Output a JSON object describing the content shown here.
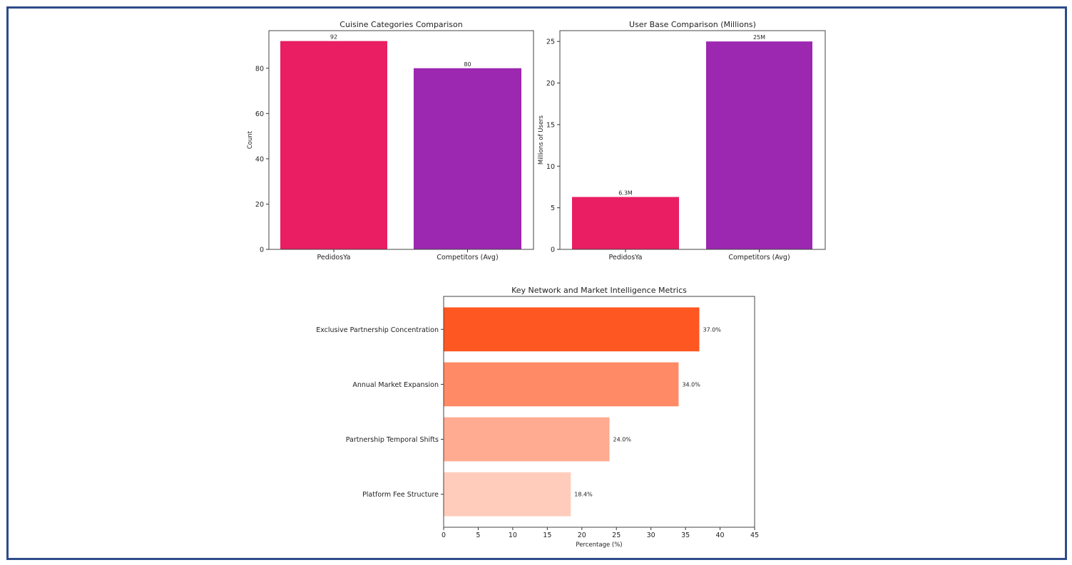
{
  "chart_data": [
    {
      "type": "bar",
      "title": "Cuisine Categories Comparison",
      "xlabel": "",
      "ylabel": "Count",
      "categories": [
        "PedidosYa",
        "Competitors (Avg)"
      ],
      "values": [
        92,
        80
      ],
      "data_labels": [
        "92",
        "80"
      ],
      "colors": [
        "#e91e63",
        "#9c27b0"
      ],
      "ylim": [
        0,
        96.6
      ],
      "yticks": [
        0,
        20,
        40,
        60,
        80
      ],
      "grid": false
    },
    {
      "type": "bar",
      "title": "User Base Comparison (Millions)",
      "xlabel": "",
      "ylabel": "Millions of Users",
      "categories": [
        "PedidosYa",
        "Competitors (Avg)"
      ],
      "values": [
        6.3,
        25
      ],
      "data_labels": [
        "6.3M",
        "25M"
      ],
      "colors": [
        "#e91e63",
        "#9c27b0"
      ],
      "ylim": [
        0,
        26.3
      ],
      "yticks": [
        0,
        5,
        10,
        15,
        20,
        25
      ],
      "grid": false
    },
    {
      "type": "bar",
      "orientation": "horizontal",
      "title": "Key Network and Market Intelligence Metrics",
      "xlabel": "Percentage (%)",
      "ylabel": "",
      "categories": [
        "Exclusive Partnership Concentration",
        "Annual Market Expansion",
        "Partnership Temporal Shifts",
        "Platform Fee Structure"
      ],
      "values": [
        37.0,
        34.0,
        24.0,
        18.4
      ],
      "data_labels": [
        "37.0%",
        "34.0%",
        "24.0%",
        "18.4%"
      ],
      "colors": [
        "#ff5722",
        "#ff8a65",
        "#ffab91",
        "#ffccbc"
      ],
      "xlim": [
        0,
        45
      ],
      "xticks": [
        0,
        5,
        10,
        15,
        20,
        25,
        30,
        35,
        40,
        45
      ],
      "grid": false
    }
  ]
}
